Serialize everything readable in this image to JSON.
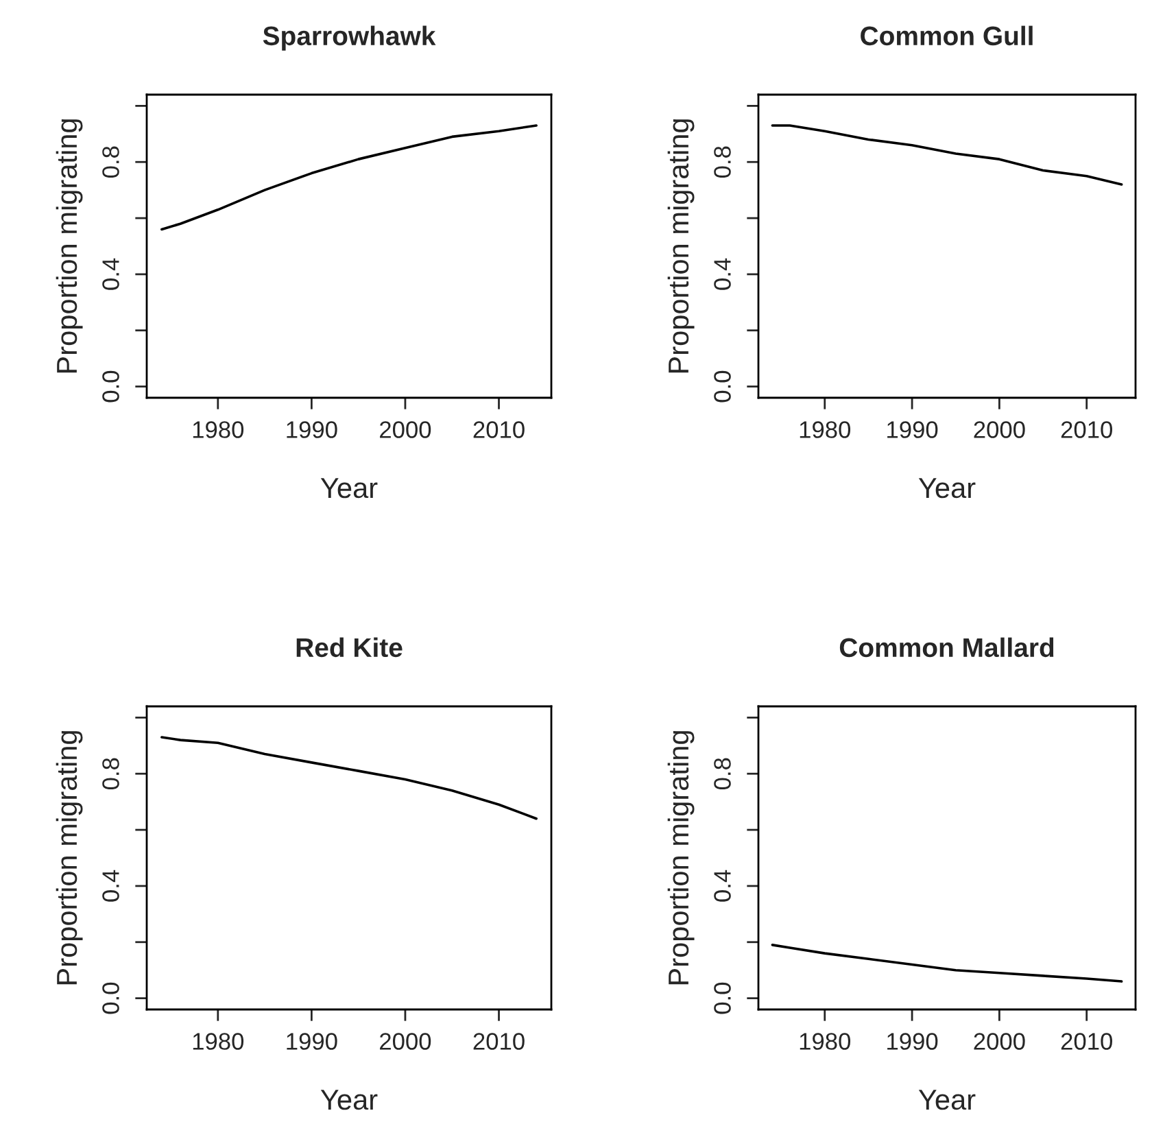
{
  "chart_data": [
    {
      "type": "line",
      "title": "Sparrowhawk",
      "xlabel": "Year",
      "ylabel": "Proportion migrating",
      "xlim": [
        1972.4,
        2015.6
      ],
      "ylim": [
        -0.04,
        1.04
      ],
      "xticks": [
        1980,
        1990,
        2000,
        2010
      ],
      "yticks": [
        {
          "value": 0,
          "label": "0.0"
        },
        {
          "value": 0.2,
          "label": null
        },
        {
          "value": 0.4,
          "label": "0.4"
        },
        {
          "value": 0.6,
          "label": null
        },
        {
          "value": 0.8,
          "label": "0.8"
        },
        {
          "value": 1.0,
          "label": null
        }
      ],
      "grid": false,
      "x": [
        1974,
        1976,
        1980,
        1985,
        1990,
        1995,
        2000,
        2005,
        2010,
        2014
      ],
      "series": [
        {
          "color": "#000000",
          "values": [
            0.56,
            0.58,
            0.63,
            0.7,
            0.76,
            0.81,
            0.85,
            0.89,
            0.91,
            0.93
          ]
        }
      ]
    },
    {
      "type": "line",
      "title": "Common Gull",
      "xlabel": "Year",
      "ylabel": "Proportion migrating",
      "xlim": [
        1972.4,
        2015.6
      ],
      "ylim": [
        -0.04,
        1.04
      ],
      "xticks": [
        1980,
        1990,
        2000,
        2010
      ],
      "yticks": [
        {
          "value": 0,
          "label": "0.0"
        },
        {
          "value": 0.2,
          "label": null
        },
        {
          "value": 0.4,
          "label": "0.4"
        },
        {
          "value": 0.6,
          "label": null
        },
        {
          "value": 0.8,
          "label": "0.8"
        },
        {
          "value": 1.0,
          "label": null
        }
      ],
      "grid": false,
      "x": [
        1974,
        1976,
        1980,
        1985,
        1990,
        1995,
        2000,
        2005,
        2010,
        2014
      ],
      "series": [
        {
          "color": "#000000",
          "values": [
            0.93,
            0.93,
            0.91,
            0.88,
            0.86,
            0.83,
            0.81,
            0.77,
            0.75,
            0.72
          ]
        }
      ]
    },
    {
      "type": "line",
      "title": "Red Kite",
      "xlabel": "Year",
      "ylabel": "Proportion migrating",
      "xlim": [
        1972.4,
        2015.6
      ],
      "ylim": [
        -0.04,
        1.04
      ],
      "xticks": [
        1980,
        1990,
        2000,
        2010
      ],
      "yticks": [
        {
          "value": 0,
          "label": "0.0"
        },
        {
          "value": 0.2,
          "label": null
        },
        {
          "value": 0.4,
          "label": "0.4"
        },
        {
          "value": 0.6,
          "label": null
        },
        {
          "value": 0.8,
          "label": "0.8"
        },
        {
          "value": 1.0,
          "label": null
        }
      ],
      "grid": false,
      "x": [
        1974,
        1976,
        1980,
        1985,
        1990,
        1995,
        2000,
        2005,
        2010,
        2014
      ],
      "series": [
        {
          "color": "#000000",
          "values": [
            0.93,
            0.92,
            0.91,
            0.87,
            0.84,
            0.81,
            0.78,
            0.74,
            0.69,
            0.64
          ]
        }
      ]
    },
    {
      "type": "line",
      "title": "Common Mallard",
      "xlabel": "Year",
      "ylabel": "Proportion migrating",
      "xlim": [
        1972.4,
        2015.6
      ],
      "ylim": [
        -0.04,
        1.04
      ],
      "xticks": [
        1980,
        1990,
        2000,
        2010
      ],
      "yticks": [
        {
          "value": 0,
          "label": "0.0"
        },
        {
          "value": 0.2,
          "label": null
        },
        {
          "value": 0.4,
          "label": "0.4"
        },
        {
          "value": 0.6,
          "label": null
        },
        {
          "value": 0.8,
          "label": "0.8"
        },
        {
          "value": 1.0,
          "label": null
        }
      ],
      "grid": false,
      "x": [
        1974,
        1976,
        1980,
        1985,
        1990,
        1995,
        2000,
        2005,
        2010,
        2014
      ],
      "series": [
        {
          "color": "#000000",
          "values": [
            0.19,
            0.18,
            0.16,
            0.14,
            0.12,
            0.1,
            0.09,
            0.08,
            0.07,
            0.06
          ]
        }
      ]
    }
  ]
}
